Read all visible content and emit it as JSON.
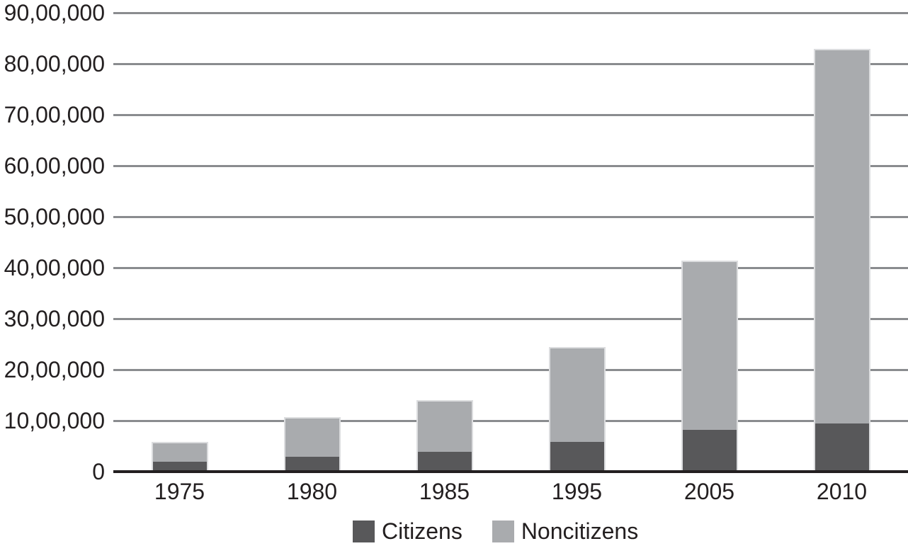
{
  "chart_data": {
    "type": "bar",
    "stacked": true,
    "title": "",
    "xlabel": "",
    "ylabel": "",
    "categories": [
      "1975",
      "1980",
      "1985",
      "1995",
      "2005",
      "2010"
    ],
    "series": [
      {
        "name": "Citizens",
        "color": "#58585a",
        "values": [
          200000,
          290000,
          390000,
          590000,
          820000,
          940000
        ]
      },
      {
        "name": "Noncitizens",
        "color": "#a9abae",
        "values": [
          360000,
          750000,
          990000,
          1820000,
          3290000,
          7330000
        ]
      }
    ],
    "totals": [
      560000,
      1040000,
      1380000,
      2410000,
      4110000,
      8270000
    ],
    "ylim": [
      0,
      9000000
    ],
    "ytick_values": [
      0,
      1000000,
      2000000,
      3000000,
      4000000,
      5000000,
      6000000,
      7000000,
      8000000,
      9000000
    ],
    "ytick_labels": [
      "0",
      "10,00,000",
      "20,00,000",
      "30,00,000",
      "40,00,000",
      "50,00,000",
      "60,00,000",
      "70,00,000",
      "80,00,000",
      "90,00,000"
    ],
    "number_format": "indian-grouping",
    "grid": true,
    "legend_position": "bottom",
    "legend_items": [
      "Citizens",
      "Noncitizens"
    ]
  },
  "colors": {
    "citizens_fill": "#58585a",
    "noncitizens_fill": "#a9abae",
    "gridline": "#8a8c8f",
    "axis_line": "#231f20",
    "text": "#231f20",
    "background": "#ffffff",
    "bar_outline": "#dcdddf"
  }
}
